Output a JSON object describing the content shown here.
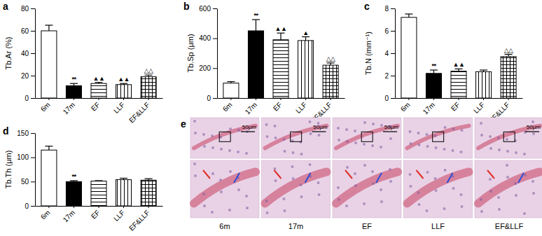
{
  "chart_data": [
    {
      "type": "bar",
      "title": "a",
      "y_label": "Tb.Ar (%)",
      "categories": [
        "6m",
        "17m",
        "EF",
        "LLF",
        "EF&LLF"
      ],
      "values": [
        60,
        11,
        13,
        12,
        19
      ],
      "errors": [
        5,
        2,
        1,
        1,
        1.5
      ],
      "annotations": [
        null,
        "**",
        "▲▲",
        "▲▲",
        "△△"
      ],
      "colors": [
        "#ffffff",
        "#000000",
        "#ffffff",
        "#ffffff",
        "#ffffff"
      ],
      "ylim": [
        0,
        80
      ],
      "yticks": [
        0,
        20,
        40,
        60,
        80
      ]
    },
    {
      "type": "bar",
      "title": "b",
      "y_label": "Tb.Sp (μm)",
      "categories": [
        "6m",
        "17m",
        "EF",
        "LLF",
        "EF&LLF"
      ],
      "values": [
        100,
        450,
        390,
        385,
        220
      ],
      "errors": [
        10,
        75,
        45,
        25,
        15
      ],
      "annotations": [
        null,
        "**",
        "▲▲",
        "▲",
        "△△"
      ],
      "colors": [
        "#ffffff",
        "#000000",
        "#ffffff",
        "#ffffff",
        "#ffffff"
      ],
      "ylim": [
        0,
        600
      ],
      "yticks": [
        0,
        200,
        400,
        600
      ]
    },
    {
      "type": "bar",
      "title": "c",
      "y_label": "Tb.N (mm⁻¹)",
      "categories": [
        "6m",
        "17m",
        "EF",
        "LLF",
        "EF&LLF"
      ],
      "values": [
        7.2,
        2.2,
        2.4,
        2.35,
        3.7
      ],
      "errors": [
        0.3,
        0.3,
        0.2,
        0.15,
        0.2
      ],
      "annotations": [
        null,
        "**",
        "▲▲",
        null,
        "△△"
      ],
      "colors": [
        "#ffffff",
        "#000000",
        "#ffffff",
        "#ffffff",
        "#ffffff"
      ],
      "ylim": [
        0,
        8
      ],
      "yticks": [
        0,
        2,
        4,
        6,
        8
      ]
    },
    {
      "type": "bar",
      "title": "d",
      "y_label": "Tb.Th (μm)",
      "categories": [
        "6m",
        "17m",
        "EF",
        "LLF",
        "EF&LLF"
      ],
      "values": [
        115,
        50,
        51,
        54,
        53
      ],
      "errors": [
        8,
        2,
        1,
        3,
        3
      ],
      "annotations": [
        null,
        "**",
        null,
        null,
        null
      ],
      "colors": [
        "#ffffff",
        "#000000",
        "#ffffff",
        "#ffffff",
        "#ffffff"
      ],
      "ylim": [
        0,
        150
      ],
      "yticks": [
        0,
        50,
        100,
        150
      ]
    }
  ],
  "panel_e": {
    "title": "e",
    "labels": [
      "6m",
      "17m",
      "EF",
      "LLF",
      "EF&LLF"
    ],
    "scale_bar_labels": [
      "50μm",
      "50μm",
      "50μm",
      null,
      "50μm"
    ]
  }
}
